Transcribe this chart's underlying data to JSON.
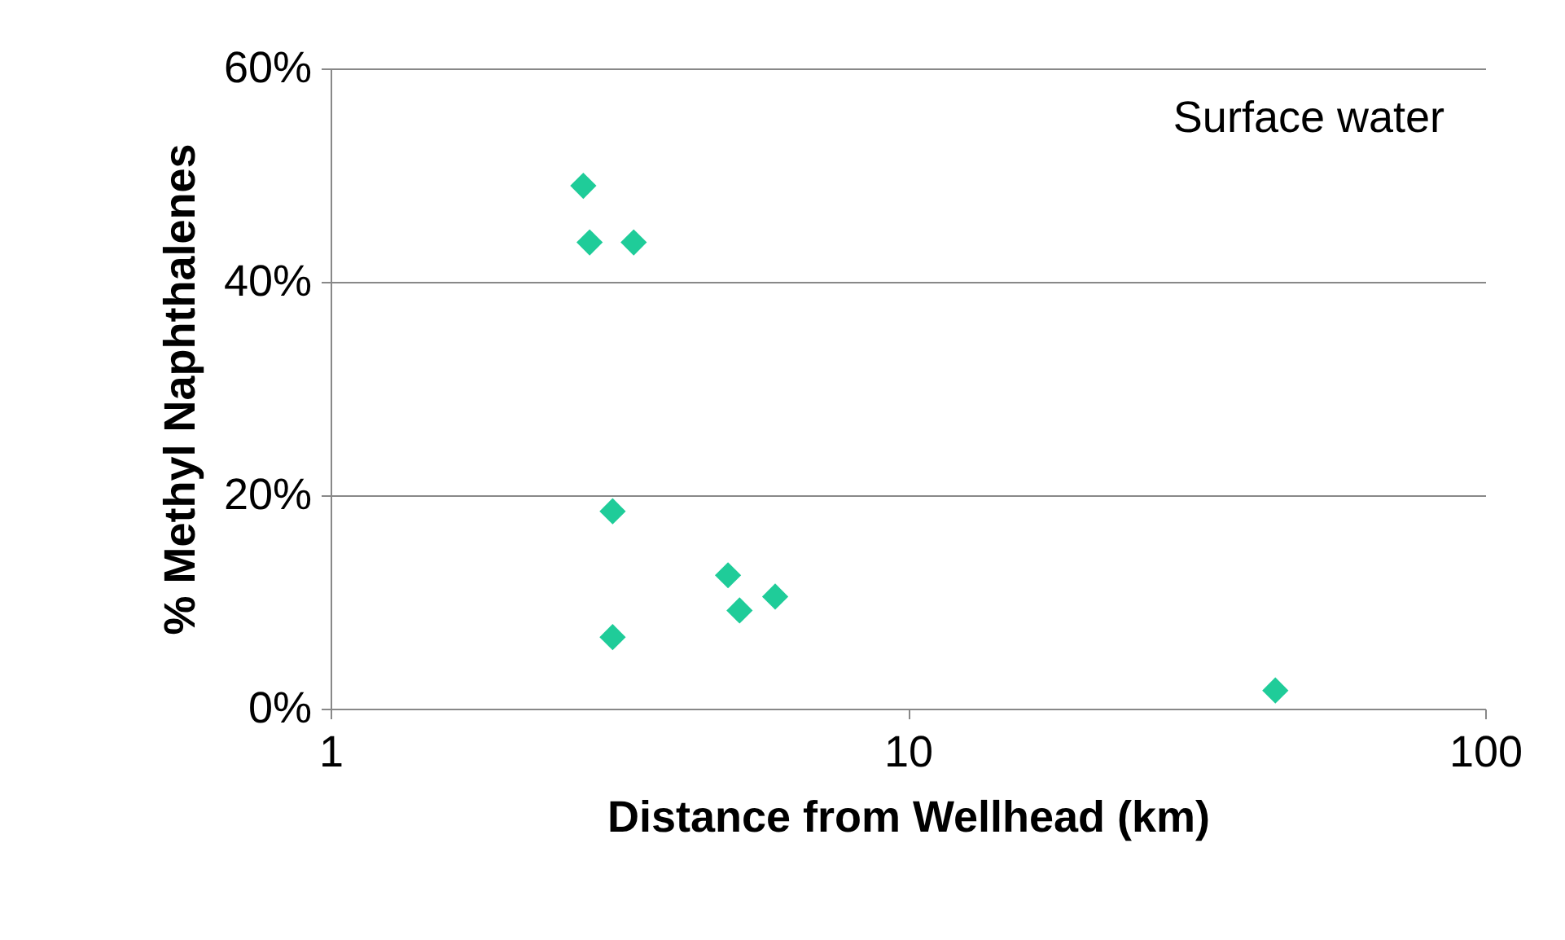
{
  "chart_data": {
    "type": "scatter",
    "xlabel": "Distance from Wellhead (km)",
    "ylabel": "% Methyl Naphthalenes",
    "annotations": [
      "Surface water"
    ],
    "x": [
      2.74,
      2.81,
      3.35,
      3.08,
      3.08,
      4.88,
      5.11,
      5.89,
      43.3
    ],
    "series": [
      {
        "color": "#1fcc99",
        "values": [
          49.0,
          43.7,
          43.7,
          18.5,
          6.7,
          12.5,
          9.2,
          10.5,
          1.7
        ]
      }
    ],
    "log": "x",
    "xlim": [
      1,
      100
    ],
    "xticks": [
      1,
      10,
      100
    ],
    "ylim": [
      0,
      60
    ],
    "yticks": [
      {
        "value": 0,
        "label": "0%"
      },
      {
        "value": 20,
        "label": "20%"
      },
      {
        "value": 40,
        "label": "40%"
      },
      {
        "value": 60,
        "label": "60%"
      }
    ],
    "grid": "y",
    "legend": false,
    "marker": "diamond"
  }
}
